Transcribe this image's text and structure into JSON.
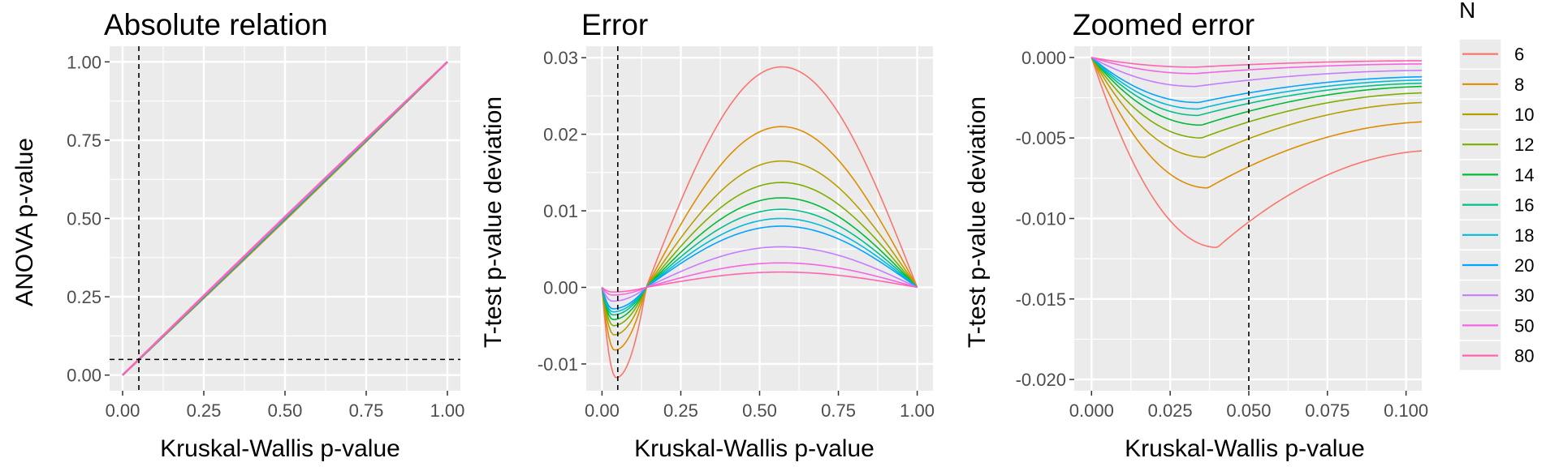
{
  "legend": {
    "title": "N",
    "entries": [
      {
        "label": "6",
        "color": "#F8766D"
      },
      {
        "label": "8",
        "color": "#DE8C00"
      },
      {
        "label": "10",
        "color": "#B79F00"
      },
      {
        "label": "12",
        "color": "#7CAE00"
      },
      {
        "label": "14",
        "color": "#00BA38"
      },
      {
        "label": "16",
        "color": "#00C08B"
      },
      {
        "label": "18",
        "color": "#00BCD8"
      },
      {
        "label": "20",
        "color": "#00A5FF"
      },
      {
        "label": "30",
        "color": "#C77CFF"
      },
      {
        "label": "50",
        "color": "#F564E3"
      },
      {
        "label": "80",
        "color": "#FF64B0"
      }
    ]
  },
  "chart_data": [
    {
      "type": "line",
      "title": "Absolute relation",
      "xlabel": "Kruskal-Wallis p-value",
      "ylabel": "ANOVA p-value",
      "xlim": [
        -0.04,
        1.04
      ],
      "ylim": [
        -0.05,
        1.05
      ],
      "xticks": [
        0,
        0.25,
        0.5,
        0.75,
        1
      ],
      "xtick_labels": [
        "0.00",
        "0.25",
        "0.50",
        "0.75",
        "1.00"
      ],
      "yticks": [
        0,
        0.25,
        0.5,
        0.75,
        1
      ],
      "ytick_labels": [
        "0.00",
        "0.25",
        "0.50",
        "0.75",
        "1.00"
      ],
      "reference_lines": {
        "vertical": 0.05,
        "horizontal": 0.05
      },
      "series": [
        {
          "name": "6",
          "amplitude": 0.0
        },
        {
          "name": "80",
          "amplitude": 0.0
        }
      ],
      "description_model": "y = x (all N overlap)"
    },
    {
      "type": "line",
      "title": "Error",
      "xlabel": "Kruskal-Wallis p-value",
      "ylabel": "T-test p-value deviation",
      "xlim": [
        -0.05,
        1.05
      ],
      "ylim": [
        -0.0135,
        0.0315
      ],
      "xticks": [
        0,
        0.25,
        0.5,
        0.75,
        1
      ],
      "xtick_labels": [
        "0.00",
        "0.25",
        "0.50",
        "0.75",
        "1.00"
      ],
      "yticks": [
        -0.01,
        0,
        0.01,
        0.02,
        0.03
      ],
      "ytick_labels": [
        "-0.01",
        "0.00",
        "0.01",
        "0.02",
        "0.03"
      ],
      "reference_lines": {
        "vertical": 0.05
      },
      "series": [
        {
          "name": "6",
          "peak_x": 0.54,
          "peak_y": 0.0288,
          "min_x": 0.045,
          "min_y": -0.0118
        },
        {
          "name": "8",
          "peak_x": 0.54,
          "peak_y": 0.021,
          "min_x": 0.04,
          "min_y": -0.0082
        },
        {
          "name": "10",
          "peak_x": 0.54,
          "peak_y": 0.0165,
          "min_x": 0.038,
          "min_y": -0.0062
        },
        {
          "name": "12",
          "peak_x": 0.54,
          "peak_y": 0.0137,
          "min_x": 0.036,
          "min_y": -0.005
        },
        {
          "name": "14",
          "peak_x": 0.54,
          "peak_y": 0.0117,
          "min_x": 0.035,
          "min_y": -0.0042
        },
        {
          "name": "16",
          "peak_x": 0.54,
          "peak_y": 0.0102,
          "min_x": 0.034,
          "min_y": -0.0036
        },
        {
          "name": "18",
          "peak_x": 0.54,
          "peak_y": 0.009,
          "min_x": 0.034,
          "min_y": -0.0032
        },
        {
          "name": "20",
          "peak_x": 0.54,
          "peak_y": 0.008,
          "min_x": 0.034,
          "min_y": -0.0028
        },
        {
          "name": "30",
          "peak_x": 0.54,
          "peak_y": 0.0053,
          "min_x": 0.033,
          "min_y": -0.0018
        },
        {
          "name": "50",
          "peak_x": 0.54,
          "peak_y": 0.0032,
          "min_x": 0.033,
          "min_y": -0.001
        },
        {
          "name": "80",
          "peak_x": 0.54,
          "peak_y": 0.002,
          "min_x": 0.033,
          "min_y": -0.0006
        }
      ]
    },
    {
      "type": "line",
      "title": "Zoomed error",
      "xlabel": "Kruskal-Wallis p-value",
      "ylabel": "T-test p-value deviation",
      "xlim": [
        -0.0055,
        0.105
      ],
      "ylim": [
        -0.0207,
        0.0007
      ],
      "xticks": [
        0,
        0.025,
        0.05,
        0.075,
        0.1
      ],
      "xtick_labels": [
        "0.000",
        "0.025",
        "0.050",
        "0.075",
        "0.100"
      ],
      "yticks": [
        -0.02,
        -0.015,
        -0.01,
        -0.005,
        0
      ],
      "ytick_labels": [
        "-0.020",
        "-0.015",
        "-0.010",
        "-0.005",
        "0.000"
      ],
      "reference_lines": {
        "vertical": 0.05
      },
      "series": [
        {
          "name": "6",
          "min_x": 0.04,
          "min_y": -0.0118,
          "end_y": -0.0058
        },
        {
          "name": "8",
          "min_x": 0.037,
          "min_y": -0.0081,
          "end_y": -0.004
        },
        {
          "name": "10",
          "min_x": 0.036,
          "min_y": -0.0062,
          "end_y": -0.0028
        },
        {
          "name": "12",
          "min_x": 0.035,
          "min_y": -0.005,
          "end_y": -0.0022
        },
        {
          "name": "14",
          "min_x": 0.035,
          "min_y": -0.0042,
          "end_y": -0.0018
        },
        {
          "name": "16",
          "min_x": 0.034,
          "min_y": -0.0036,
          "end_y": -0.0016
        },
        {
          "name": "18",
          "min_x": 0.034,
          "min_y": -0.0032,
          "end_y": -0.0014
        },
        {
          "name": "20",
          "min_x": 0.034,
          "min_y": -0.0028,
          "end_y": -0.0012
        },
        {
          "name": "30",
          "min_x": 0.033,
          "min_y": -0.0018,
          "end_y": -0.0008
        },
        {
          "name": "50",
          "min_x": 0.033,
          "min_y": -0.001,
          "end_y": -0.0004
        },
        {
          "name": "80",
          "min_x": 0.033,
          "min_y": -0.0006,
          "end_y": -0.0002
        }
      ]
    }
  ]
}
